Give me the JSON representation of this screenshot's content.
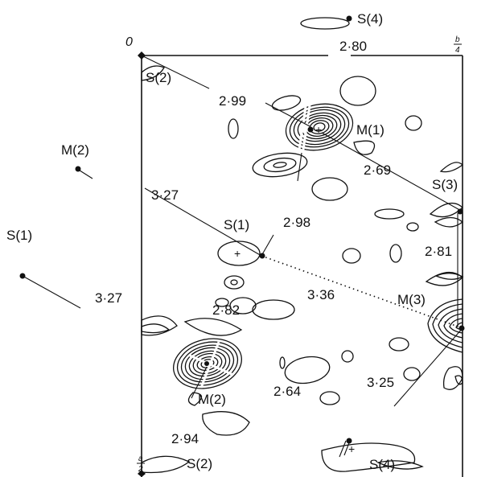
{
  "axes": {
    "origin": "0",
    "b_num": "b",
    "b_den": "4",
    "a_num": "a",
    "a_den": "2"
  },
  "atoms": {
    "s4_top": "S(4)",
    "s2_top": "S(2)",
    "m1": "M(1)",
    "m2_out": "M(2)",
    "s3": "S(3)",
    "s1_in": "S(1)",
    "s1_out": "S(1)",
    "m3": "M(3)",
    "m2_in": "M(2)",
    "s2_bottom": "S(2)",
    "s4_bottom": "S(4)"
  },
  "distances": {
    "d299": "2·99",
    "d280": "2·80",
    "d269": "2·69",
    "d327_top": "3·27",
    "d298": "2·98",
    "d281": "2·81",
    "d327_left": "3·27",
    "d336": "3·36",
    "d282": "2·82",
    "d264": "2·64",
    "d325": "3·25",
    "d294": "2·94"
  }
}
